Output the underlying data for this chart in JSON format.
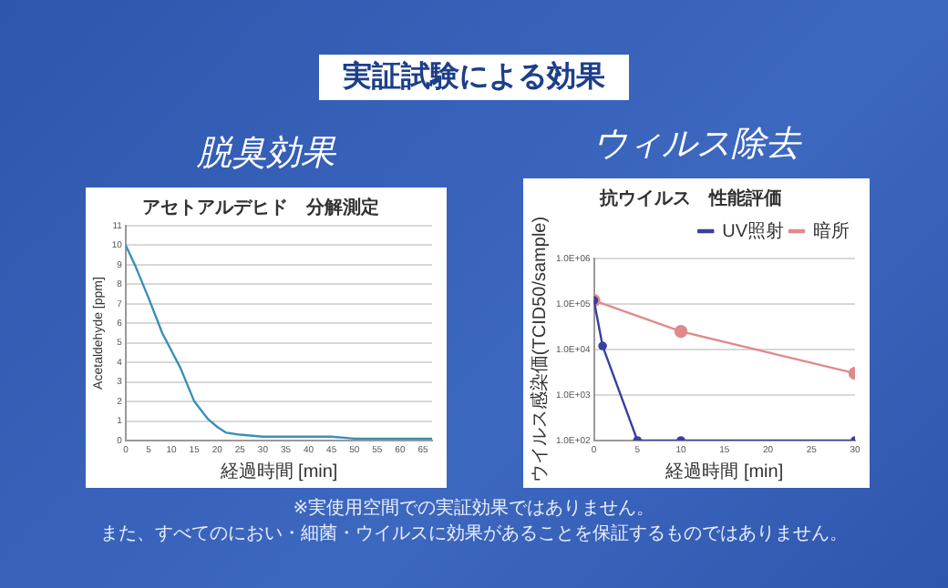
{
  "chart_data": [
    {
      "type": "other",
      "title": "実証試験による効果",
      "annotations": [
        "※実使用空間での実証効果ではありません。",
        "また、すべてのにおい・細菌・ウイルスに効果があることを保証するものではありません。"
      ]
    },
    {
      "type": "line",
      "title": "脱臭効果",
      "subtitle": "アセトアルデヒド　分解測定",
      "xlabel": "経過時間 [min]",
      "ylabel": "Acetaldehyde [ppm]",
      "series": [
        {
          "color": "#3a8fb7",
          "x": [
            0,
            2,
            5,
            8,
            10,
            12,
            15,
            18,
            20,
            22,
            25,
            30,
            35,
            40,
            45,
            50,
            55,
            60,
            67
          ],
          "values": [
            10,
            9,
            7.3,
            5.5,
            4.6,
            3.7,
            2,
            1.1,
            0.7,
            0.4,
            0.3,
            0.2,
            0.2,
            0.2,
            0.2,
            0.1,
            0.1,
            0.1,
            0.1
          ]
        }
      ],
      "xlim": [
        0,
        67
      ],
      "xticks": [
        0,
        5,
        10,
        15,
        20,
        25,
        30,
        35,
        40,
        45,
        50,
        55,
        60,
        65
      ],
      "ylim": [
        0,
        11
      ],
      "yticks": [
        0,
        1,
        2,
        3,
        4,
        5,
        6,
        7,
        8,
        9,
        10,
        11
      ],
      "grid": "y",
      "marker": "none",
      "legend": false
    },
    {
      "type": "line",
      "title": "ウィルス除去",
      "subtitle": "抗ウイルス　性能評価",
      "xlabel": "経過時間 [min]",
      "ylabel": "ウイルス感染価(TCID50/sample)",
      "log": "y",
      "series": [
        {
          "name": "UV照射",
          "color": "#3a3fa0",
          "x": [
            0,
            1,
            5,
            10,
            30
          ],
          "values": [
            120000,
            12000,
            100,
            100,
            100
          ]
        },
        {
          "name": "暗所",
          "color": "#e08a8a",
          "x": [
            0,
            10,
            30
          ],
          "values": [
            120000,
            25000,
            3000
          ]
        }
      ],
      "xlim": [
        0,
        30
      ],
      "xticks": [
        0,
        5,
        10,
        15,
        20,
        25,
        30
      ],
      "ylim": [
        100,
        1000000
      ],
      "yticks": [
        {
          "value": 100,
          "label": "1.0E+02"
        },
        {
          "value": 1000,
          "label": "1.0E+03"
        },
        {
          "value": 10000,
          "label": "1.0E+04"
        },
        {
          "value": 100000,
          "label": "1.0E+05"
        },
        {
          "value": 1000000,
          "label": "1.0E+06"
        }
      ],
      "grid": "y",
      "marker": "circle",
      "legend": "top right"
    }
  ]
}
